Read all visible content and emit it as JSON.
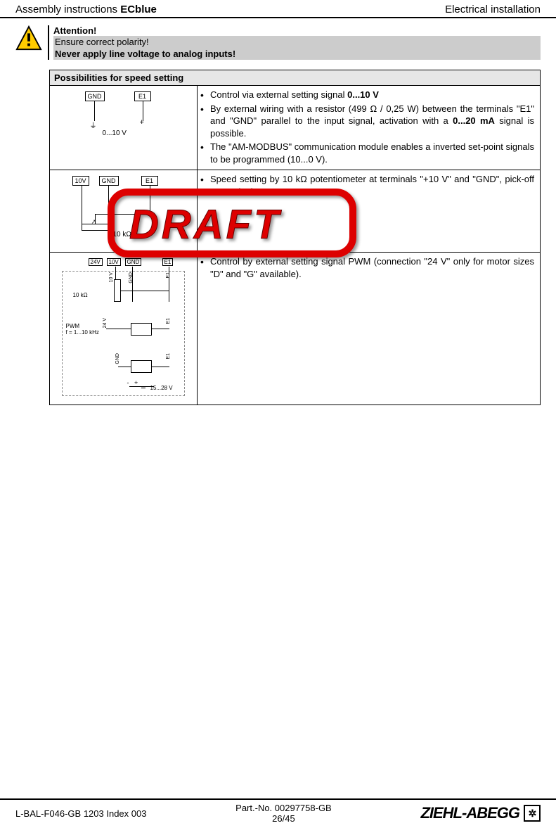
{
  "header": {
    "left_prefix": "Assembly instructions ",
    "left_bold": "ECblue",
    "right": "Electrical installation"
  },
  "attention": {
    "title": "Attention!",
    "line2": "Ensure correct polarity!",
    "line3": "Never apply line voltage to analog inputs!"
  },
  "table": {
    "caption": "Possibilities for speed setting",
    "row1": {
      "terminals": {
        "a": "GND",
        "b": "E1"
      },
      "signal_range": "0...10 V",
      "bullets": [
        "Control via external setting signal <b>0...10 V</b>",
        "By external wiring with a resistor (499 Ω / 0,25 W) between the terminals \"E1\" and \"GND\" parallel to the input signal, activation with a <b>0...20 mA</b> signal is possible.",
        "The \"AM-MODBUS\" communication module enables a inverted set-point signals to be programmed  (10...0 V)."
      ]
    },
    "row2": {
      "terminals": {
        "a": "10V",
        "b": "GND",
        "c": "E1"
      },
      "pot_value": "10 kΩ",
      "bullets": [
        "Speed setting by 10 kΩ potentiometer at terminals \"+10 V\" and \"GND\", pick-off at terminal \"E1\"."
      ]
    },
    "row3": {
      "top_terminals": {
        "a": "24V",
        "b": "10V",
        "c": "GND",
        "d": "E1"
      },
      "pot_value": "10 kΩ",
      "pwm_label1": "PWM",
      "pwm_label2": "f = 1...10 kHz",
      "voltage_label": "15...28 V",
      "side_labels": {
        "v10": "10 V",
        "gnd": "GND",
        "e1": "E1",
        "v24": "24 V"
      },
      "bullets": [
        "Control by external setting signal PWM (connection \"24 V\" only for motor sizes \"D\" and \"G\" available)."
      ]
    }
  },
  "draft": "DRAFT",
  "footer": {
    "left": "L-BAL-F046-GB 1203 Index 003",
    "center_top": "Part.-No. 00297758-GB",
    "center_bottom": "26/45"
  },
  "brand": "ZIEHL-ABEGG"
}
